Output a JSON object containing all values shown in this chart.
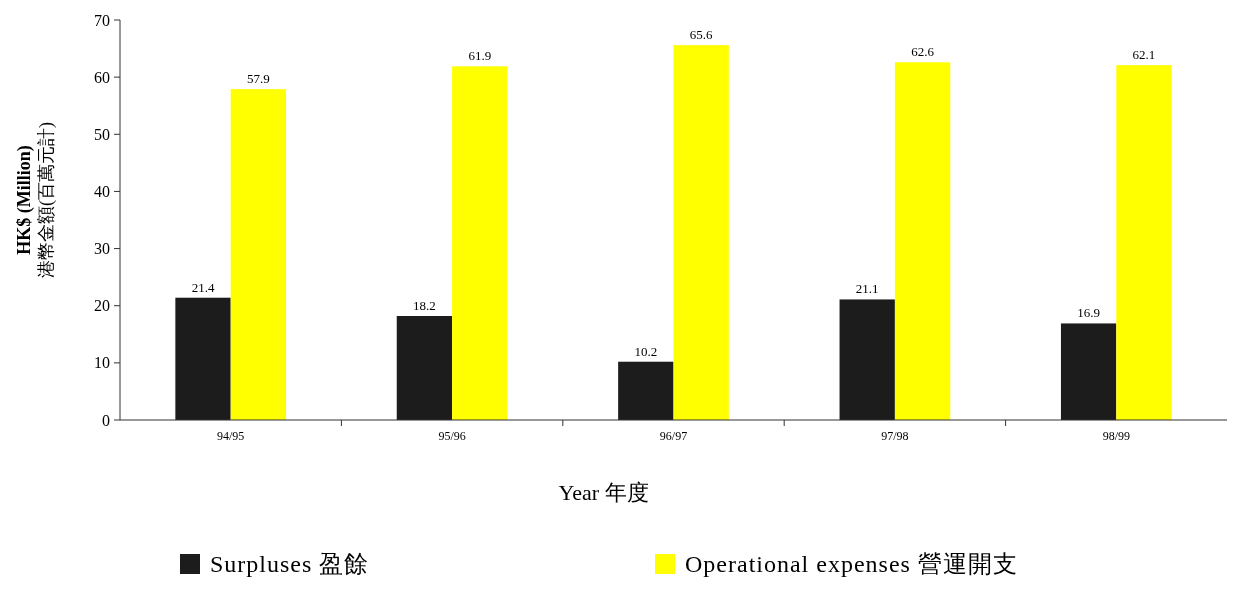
{
  "chart_data": {
    "type": "bar",
    "xlabel": "Year  年度",
    "ylabel": "HK$ (Million)\n港幣金額(百萬元計)",
    "categories": [
      "94/95",
      "95/96",
      "96/97",
      "97/98",
      "98/99"
    ],
    "series": [
      {
        "name": "Surpluses  盈餘",
        "color": "#1c1c1c",
        "values": [
          21.4,
          18.2,
          10.2,
          21.1,
          16.9
        ]
      },
      {
        "name": "Operational expenses  營運開支",
        "color": "#ffff00",
        "values": [
          57.9,
          61.9,
          65.6,
          62.6,
          62.1
        ]
      }
    ],
    "ylim": [
      0,
      70
    ],
    "yticks": [
      0,
      10,
      20,
      30,
      40,
      50,
      60,
      70
    ],
    "data_labels": true,
    "legend": "bottom",
    "grid": false
  }
}
